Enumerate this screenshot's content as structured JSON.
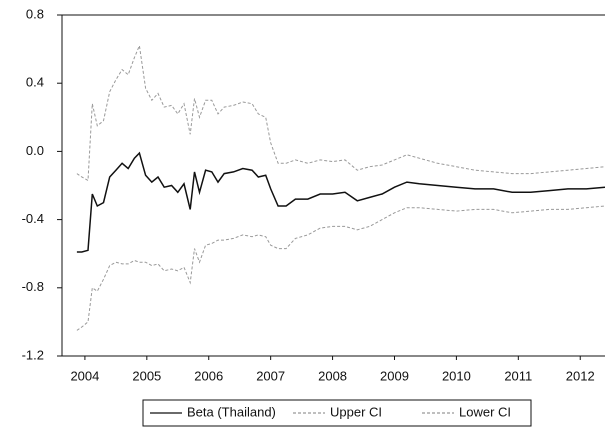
{
  "chart_data": {
    "type": "line",
    "x": [
      2004.37,
      2004.45,
      2004.55,
      2004.62,
      2004.7,
      2004.8,
      2004.9,
      2005.0,
      2005.1,
      2005.2,
      2005.3,
      2005.38,
      2005.48,
      2005.58,
      2005.68,
      2005.78,
      2005.9,
      2006.0,
      2006.1,
      2006.2,
      2006.27,
      2006.35,
      2006.45,
      2006.55,
      2006.65,
      2006.75,
      2006.9,
      2007.05,
      2007.2,
      2007.3,
      2007.42,
      2007.5,
      2007.62,
      2007.75,
      2007.9,
      2008.1,
      2008.3,
      2008.5,
      2008.7,
      2008.9,
      2009.1,
      2009.3,
      2009.5,
      2009.7,
      2009.9,
      2010.2,
      2010.5,
      2010.8,
      2011.1,
      2011.4,
      2011.7,
      2012.0,
      2012.3,
      2012.6,
      2012.9
    ],
    "series": [
      {
        "name": "Beta (Thailand)",
        "color": "#111111",
        "line_style": "solid",
        "values": [
          -0.59,
          -0.59,
          -0.58,
          -0.25,
          -0.32,
          -0.3,
          -0.15,
          -0.11,
          -0.07,
          -0.1,
          -0.04,
          -0.01,
          -0.14,
          -0.18,
          -0.15,
          -0.21,
          -0.2,
          -0.24,
          -0.19,
          -0.34,
          -0.12,
          -0.24,
          -0.11,
          -0.12,
          -0.18,
          -0.13,
          -0.12,
          -0.1,
          -0.11,
          -0.15,
          -0.14,
          -0.22,
          -0.32,
          -0.32,
          -0.28,
          -0.28,
          -0.25,
          -0.25,
          -0.24,
          -0.29,
          -0.27,
          -0.25,
          -0.21,
          -0.18,
          -0.19,
          -0.2,
          -0.21,
          -0.22,
          -0.22,
          -0.24,
          -0.24,
          -0.23,
          -0.22,
          -0.22,
          -0.21
        ]
      },
      {
        "name": "Upper CI",
        "color": "#999999",
        "line_style": "dashed",
        "values": [
          -0.13,
          -0.15,
          -0.17,
          0.28,
          0.15,
          0.18,
          0.35,
          0.42,
          0.48,
          0.45,
          0.55,
          0.62,
          0.37,
          0.3,
          0.34,
          0.26,
          0.27,
          0.22,
          0.28,
          0.1,
          0.31,
          0.2,
          0.3,
          0.3,
          0.22,
          0.26,
          0.27,
          0.29,
          0.28,
          0.22,
          0.2,
          0.05,
          -0.07,
          -0.07,
          -0.05,
          -0.07,
          -0.05,
          -0.06,
          -0.05,
          -0.11,
          -0.09,
          -0.08,
          -0.05,
          -0.02,
          -0.04,
          -0.07,
          -0.09,
          -0.11,
          -0.12,
          -0.13,
          -0.13,
          -0.12,
          -0.11,
          -0.1,
          -0.09
        ]
      },
      {
        "name": "Lower CI",
        "color": "#999999",
        "line_style": "dashed",
        "values": [
          -1.05,
          -1.03,
          -1.0,
          -0.8,
          -0.82,
          -0.75,
          -0.67,
          -0.65,
          -0.66,
          -0.66,
          -0.64,
          -0.65,
          -0.65,
          -0.67,
          -0.66,
          -0.7,
          -0.69,
          -0.7,
          -0.68,
          -0.77,
          -0.57,
          -0.65,
          -0.55,
          -0.54,
          -0.52,
          -0.52,
          -0.51,
          -0.49,
          -0.5,
          -0.49,
          -0.5,
          -0.55,
          -0.57,
          -0.57,
          -0.51,
          -0.49,
          -0.45,
          -0.44,
          -0.44,
          -0.46,
          -0.44,
          -0.4,
          -0.36,
          -0.33,
          -0.33,
          -0.34,
          -0.35,
          -0.34,
          -0.34,
          -0.36,
          -0.35,
          -0.34,
          -0.34,
          -0.33,
          -0.32
        ]
      }
    ],
    "xlim": [
      2004.13,
      2012.9
    ],
    "xticks": [
      {
        "value": 2004.5,
        "label": "2004"
      },
      {
        "value": 2005.5,
        "label": "2005"
      },
      {
        "value": 2006.5,
        "label": "2006"
      },
      {
        "value": 2007.5,
        "label": "2007"
      },
      {
        "value": 2008.5,
        "label": "2008"
      },
      {
        "value": 2009.5,
        "label": "2009"
      },
      {
        "value": 2010.5,
        "label": "2010"
      },
      {
        "value": 2011.5,
        "label": "2011"
      },
      {
        "value": 2012.5,
        "label": "2012"
      }
    ],
    "ylim": [
      -1.2,
      0.8
    ],
    "yticks": [
      {
        "value": -1.2,
        "label": "-1.2"
      },
      {
        "value": -0.8,
        "label": "-0.8"
      },
      {
        "value": -0.4,
        "label": "-0.4"
      },
      {
        "value": 0,
        "label": "0.0"
      },
      0.4,
      0.8
    ],
    "grid": false,
    "legend": "bottom"
  }
}
